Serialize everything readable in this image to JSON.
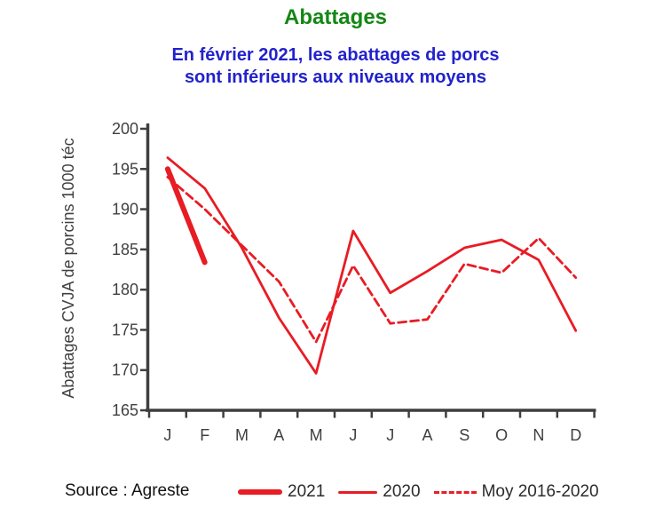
{
  "title": "Abattages",
  "subtitle_line1": "En février 2021, les abattages de porcs",
  "subtitle_line2": "sont inférieurs aux niveaux moyens",
  "source": "Source : Agreste",
  "colors": {
    "series_red": "#e81c24",
    "title_green": "#148714",
    "subtitle_blue": "#2222cc",
    "axis_gray": "#3f3f3f"
  },
  "chart_data": {
    "type": "line",
    "title": "Abattages",
    "xlabel": "",
    "ylabel": "Abattages CVJA de porcins 1000 téc",
    "x_tick_labels": [
      "J",
      "F",
      "M",
      "A",
      "M",
      "J",
      "J",
      "A",
      "S",
      "O",
      "N",
      "D"
    ],
    "ylim": [
      165,
      200
    ],
    "y_ticks": [
      165,
      170,
      175,
      180,
      185,
      190,
      195,
      200
    ],
    "grid": false,
    "legend_position": "bottom",
    "series": [
      {
        "name": "2021",
        "style": "solid-thick",
        "values": [
          195,
          183.4,
          null,
          null,
          null,
          null,
          null,
          null,
          null,
          null,
          null,
          null
        ]
      },
      {
        "name": "2020",
        "style": "solid",
        "values": [
          196.4,
          192.6,
          185.2,
          176.5,
          169.6,
          187.3,
          179.6,
          182.3,
          185.2,
          186.2,
          183.7,
          174.9
        ]
      },
      {
        "name": "Moy 2016-2020",
        "style": "dashed",
        "values": [
          194,
          190,
          185.5,
          181,
          173.5,
          183,
          175.8,
          176.3,
          183.2,
          182.1,
          186.4,
          181.5
        ]
      }
    ]
  }
}
